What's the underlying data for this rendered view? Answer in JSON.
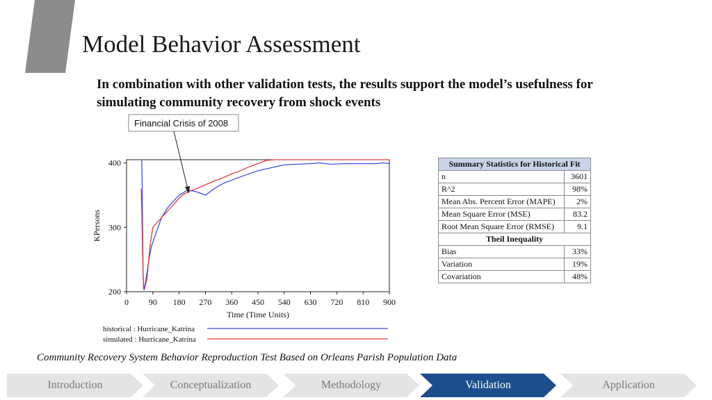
{
  "slide": {
    "title": "Model Behavior Assessment",
    "subtitle": "In combination with other validation tests, the results support the model’s usefulness for simulating community recovery from shock events",
    "caption": "Community Recovery System Behavior Reproduction Test Based on Orleans Parish Population Data",
    "accent_color": "#8c8c8c"
  },
  "chart_data": {
    "type": "line",
    "annotation": "Financial Crisis of 2008",
    "annotation_target": {
      "x": 210,
      "y": 352
    },
    "xlabel": "Time (Time Units)",
    "ylabel": "KPersons",
    "xlim": [
      0,
      900
    ],
    "ylim": [
      200,
      405
    ],
    "xticks": [
      0,
      90,
      180,
      270,
      360,
      450,
      540,
      630,
      720,
      810,
      900
    ],
    "yticks": [
      200,
      300,
      400
    ],
    "grid": false,
    "legend_position": "bottom-left",
    "series": [
      {
        "name": "historical : Hurricane_Katrina",
        "color": "#3b4fe0",
        "points": [
          [
            50,
            405
          ],
          [
            52,
            405
          ],
          [
            53,
            380
          ],
          [
            55,
            300
          ],
          [
            57,
            220
          ],
          [
            60,
            202
          ],
          [
            65,
            215
          ],
          [
            75,
            245
          ],
          [
            85,
            270
          ],
          [
            100,
            290
          ],
          [
            120,
            315
          ],
          [
            140,
            330
          ],
          [
            160,
            340
          ],
          [
            180,
            350
          ],
          [
            210,
            358
          ],
          [
            240,
            355
          ],
          [
            270,
            350
          ],
          [
            300,
            360
          ],
          [
            330,
            368
          ],
          [
            370,
            375
          ],
          [
            400,
            380
          ],
          [
            450,
            388
          ],
          [
            480,
            391
          ],
          [
            540,
            397
          ],
          [
            580,
            398
          ],
          [
            630,
            399
          ],
          [
            660,
            400
          ],
          [
            700,
            398
          ],
          [
            750,
            399
          ],
          [
            800,
            399
          ],
          [
            850,
            399
          ],
          [
            880,
            400
          ],
          [
            900,
            399
          ]
        ]
      },
      {
        "name": "simulated : Hurricane_Katrina",
        "color": "#e03a3a",
        "points": [
          [
            50,
            360
          ],
          [
            52,
            330
          ],
          [
            55,
            260
          ],
          [
            58,
            205
          ],
          [
            62,
            205
          ],
          [
            70,
            220
          ],
          [
            80,
            270
          ],
          [
            90,
            300
          ],
          [
            110,
            310
          ],
          [
            130,
            320
          ],
          [
            160,
            335
          ],
          [
            190,
            350
          ],
          [
            210,
            355
          ],
          [
            240,
            360
          ],
          [
            270,
            366
          ],
          [
            300,
            372
          ],
          [
            330,
            377
          ],
          [
            360,
            383
          ],
          [
            390,
            388
          ],
          [
            420,
            394
          ],
          [
            450,
            399
          ],
          [
            480,
            404
          ],
          [
            510,
            406
          ],
          [
            540,
            406
          ],
          [
            600,
            406
          ],
          [
            700,
            406
          ],
          [
            800,
            406
          ],
          [
            900,
            406
          ]
        ]
      }
    ]
  },
  "stats_table": {
    "title": "Summary Statistics for Historical Fit",
    "rows": [
      {
        "label": "n",
        "value": "3601"
      },
      {
        "label": "R^2",
        "value": "98%"
      },
      {
        "label": "Mean Abs. Percent Error (MAPE)",
        "value": "2%"
      },
      {
        "label": "Mean Square Error (MSE)",
        "value": "83.2"
      },
      {
        "label": "Root Mean Square Error (RMSE)",
        "value": "9.1"
      }
    ],
    "section_title": "Theil Inequality",
    "theil_rows": [
      {
        "label": "Bias",
        "value": "33%"
      },
      {
        "label": "Variation",
        "value": "19%"
      },
      {
        "label": "Covariation",
        "value": "48%"
      }
    ]
  },
  "nav": {
    "items": [
      {
        "label": "Introduction",
        "active": false
      },
      {
        "label": "Conceptualization",
        "active": false
      },
      {
        "label": "Methodology",
        "active": false
      },
      {
        "label": "Validation",
        "active": true
      },
      {
        "label": "Application",
        "active": false
      }
    ]
  }
}
